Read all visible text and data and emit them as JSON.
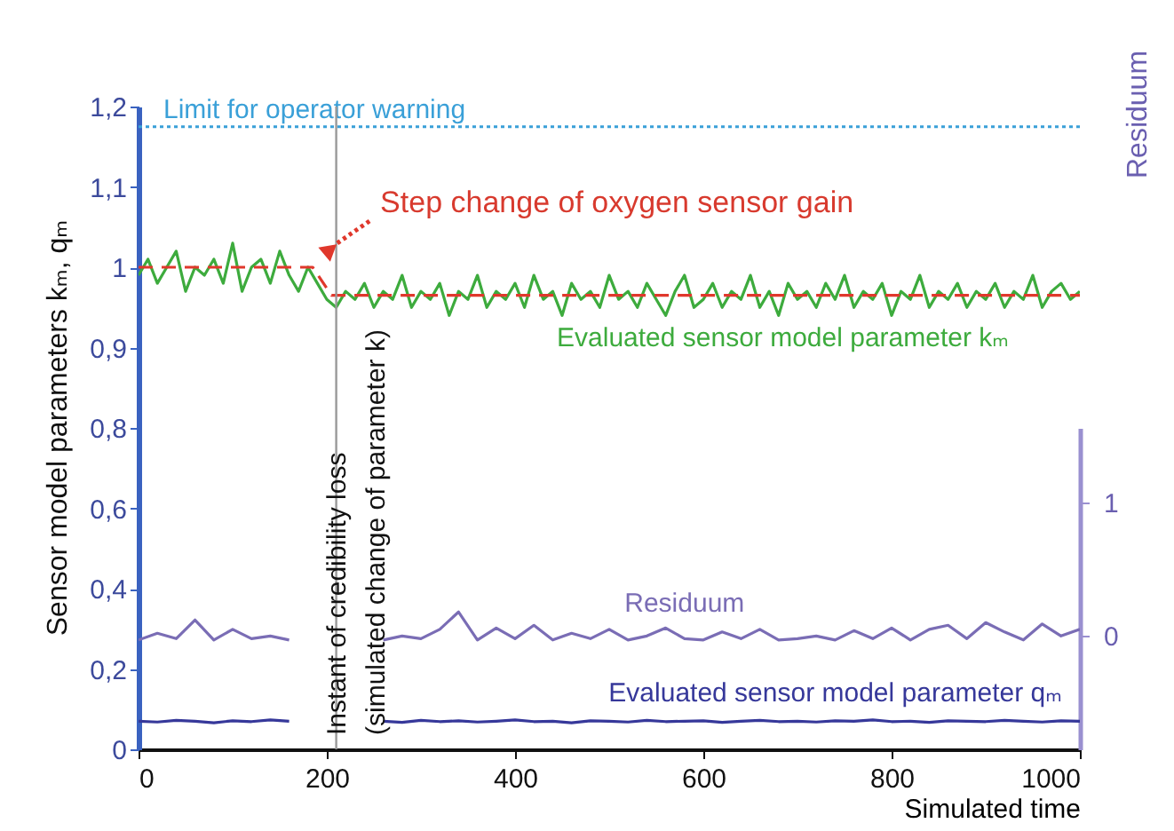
{
  "chart_data": [
    {
      "type": "line",
      "ylabel": "Sensor model parameters kₘ, qₘ",
      "tick_labels": "y",
      "xlim": [
        0,
        1000
      ],
      "ylim": [
        0.8,
        1.2
      ],
      "yticks": [
        {
          "value": 0.9,
          "label": "0,9"
        },
        1,
        {
          "value": 1.1,
          "label": "1,1"
        },
        {
          "value": 1.2,
          "label": "1,2"
        }
      ],
      "series": [
        {
          "name": "Evaluated sensor model parameter kₘ",
          "color": "#3dab3d",
          "x": [
            0,
            10,
            20,
            30,
            40,
            50,
            60,
            70,
            80,
            90,
            100,
            110,
            120,
            130,
            140,
            150,
            160,
            170,
            180,
            190,
            200,
            210,
            220,
            230,
            240,
            250,
            260,
            270,
            280,
            290,
            300,
            310,
            320,
            330,
            340,
            350,
            360,
            370,
            380,
            390,
            400,
            410,
            420,
            430,
            440,
            450,
            460,
            470,
            480,
            490,
            500,
            510,
            520,
            530,
            540,
            550,
            560,
            570,
            580,
            590,
            600,
            610,
            620,
            630,
            640,
            650,
            660,
            670,
            680,
            690,
            700,
            710,
            720,
            730,
            740,
            750,
            760,
            770,
            780,
            790,
            800,
            810,
            820,
            830,
            840,
            850,
            860,
            870,
            880,
            890,
            900,
            910,
            920,
            930,
            940,
            950,
            960,
            970,
            980,
            990,
            1000
          ],
          "values": [
            0.99,
            1.01,
            0.98,
            1.0,
            1.02,
            0.97,
            1.0,
            0.99,
            1.01,
            0.98,
            1.03,
            0.97,
            1.0,
            1.01,
            0.98,
            1.02,
            0.99,
            0.97,
            1.0,
            0.98,
            0.96,
            0.95,
            0.97,
            0.96,
            0.98,
            0.95,
            0.97,
            0.96,
            0.99,
            0.95,
            0.97,
            0.96,
            0.98,
            0.94,
            0.97,
            0.96,
            0.99,
            0.95,
            0.97,
            0.96,
            0.98,
            0.95,
            0.99,
            0.96,
            0.97,
            0.94,
            0.98,
            0.96,
            0.97,
            0.95,
            0.99,
            0.96,
            0.97,
            0.95,
            0.98,
            0.96,
            0.94,
            0.97,
            0.99,
            0.95,
            0.96,
            0.98,
            0.95,
            0.97,
            0.96,
            0.99,
            0.95,
            0.97,
            0.94,
            0.98,
            0.96,
            0.97,
            0.95,
            0.98,
            0.96,
            0.99,
            0.95,
            0.97,
            0.96,
            0.98,
            0.94,
            0.97,
            0.96,
            0.99,
            0.95,
            0.97,
            0.96,
            0.98,
            0.95,
            0.97,
            0.96,
            0.98,
            0.95,
            0.97,
            0.96,
            0.99,
            0.95,
            0.97,
            0.98,
            0.96,
            0.97
          ]
        },
        {
          "color": "#e0382c",
          "line_style": "dashed",
          "x": [
            0,
            185,
            205,
            1000
          ],
          "values": [
            1,
            1,
            0.965,
            0.965
          ]
        }
      ],
      "ref_lines": [
        {
          "axis": "y",
          "value": 1.175,
          "label": "Limit for operator warning",
          "color": "#3aa0d8",
          "line_style": "dotted"
        },
        {
          "axis": "x",
          "value": 210,
          "color": "#999999",
          "line_style": "solid"
        }
      ],
      "annotations": [
        {
          "text": "Step change of oxygen sensor gain",
          "x": 185,
          "y": 1.0
        }
      ]
    },
    {
      "type": "line",
      "xlabel": "Simulated time",
      "y2label": "Residuum",
      "xlim": [
        0,
        1000
      ],
      "xticks": [
        0,
        200,
        400,
        600,
        800,
        1000
      ],
      "ylim": [
        0,
        0.8
      ],
      "yticks": [
        0,
        {
          "value": 0.2,
          "label": "0,2"
        },
        {
          "value": 0.4,
          "label": "0,4"
        },
        {
          "value": 0.6,
          "label": "0,6"
        },
        {
          "value": 0.8,
          "label": "0,8"
        }
      ],
      "y2lim": [
        -0.85,
        1.56
      ],
      "y2ticks": [
        0,
        1
      ],
      "series": [
        {
          "name": "Residuum",
          "color": "#7a6db5",
          "axis": "y2",
          "x": [
            0,
            20,
            40,
            60,
            80,
            100,
            120,
            140,
            160,
            210,
            260,
            280,
            300,
            320,
            340,
            360,
            380,
            400,
            420,
            440,
            460,
            480,
            500,
            520,
            540,
            560,
            580,
            600,
            620,
            640,
            660,
            680,
            700,
            720,
            740,
            760,
            780,
            800,
            820,
            840,
            860,
            880,
            900,
            920,
            940,
            960,
            980,
            1000
          ],
          "values": [
            -0.03,
            0.02,
            -0.02,
            0.12,
            -0.03,
            0.05,
            -0.02,
            0.0,
            -0.03,
            null,
            -0.03,
            0.0,
            -0.02,
            0.05,
            0.18,
            -0.03,
            0.06,
            -0.02,
            0.08,
            -0.03,
            0.02,
            -0.02,
            0.05,
            -0.03,
            0.0,
            0.06,
            -0.02,
            -0.03,
            0.03,
            -0.02,
            0.05,
            -0.03,
            -0.02,
            0.0,
            -0.03,
            0.04,
            -0.02,
            0.06,
            -0.03,
            0.05,
            0.08,
            -0.02,
            0.1,
            0.03,
            -0.03,
            0.09,
            0.0,
            0.05
          ]
        },
        {
          "name": "Evaluated sensor model parameter qₘ",
          "color": "#36389a",
          "x": [
            0,
            20,
            40,
            60,
            80,
            100,
            120,
            140,
            160,
            210,
            260,
            280,
            300,
            320,
            340,
            360,
            380,
            400,
            420,
            440,
            460,
            480,
            500,
            520,
            540,
            560,
            580,
            600,
            620,
            640,
            660,
            680,
            700,
            720,
            740,
            760,
            780,
            800,
            820,
            840,
            860,
            880,
            900,
            920,
            940,
            960,
            980,
            1000
          ],
          "values": [
            0.07,
            0.068,
            0.072,
            0.07,
            0.066,
            0.071,
            0.069,
            0.073,
            0.07,
            null,
            0.07,
            0.067,
            0.072,
            0.069,
            0.071,
            0.068,
            0.07,
            0.073,
            0.069,
            0.07,
            0.066,
            0.071,
            0.07,
            0.068,
            0.072,
            0.069,
            0.07,
            0.071,
            0.067,
            0.07,
            0.072,
            0.069,
            0.07,
            0.068,
            0.071,
            0.07,
            0.073,
            0.069,
            0.07,
            0.067,
            0.071,
            0.07,
            0.069,
            0.072,
            0.07,
            0.068,
            0.071,
            0.07
          ]
        }
      ],
      "ref_lines": [
        {
          "axis": "x",
          "value": 210,
          "label": "Instant of credibility loss\n(simulated change of parameter k)",
          "color": "#999999",
          "line_style": "solid"
        }
      ]
    }
  ]
}
